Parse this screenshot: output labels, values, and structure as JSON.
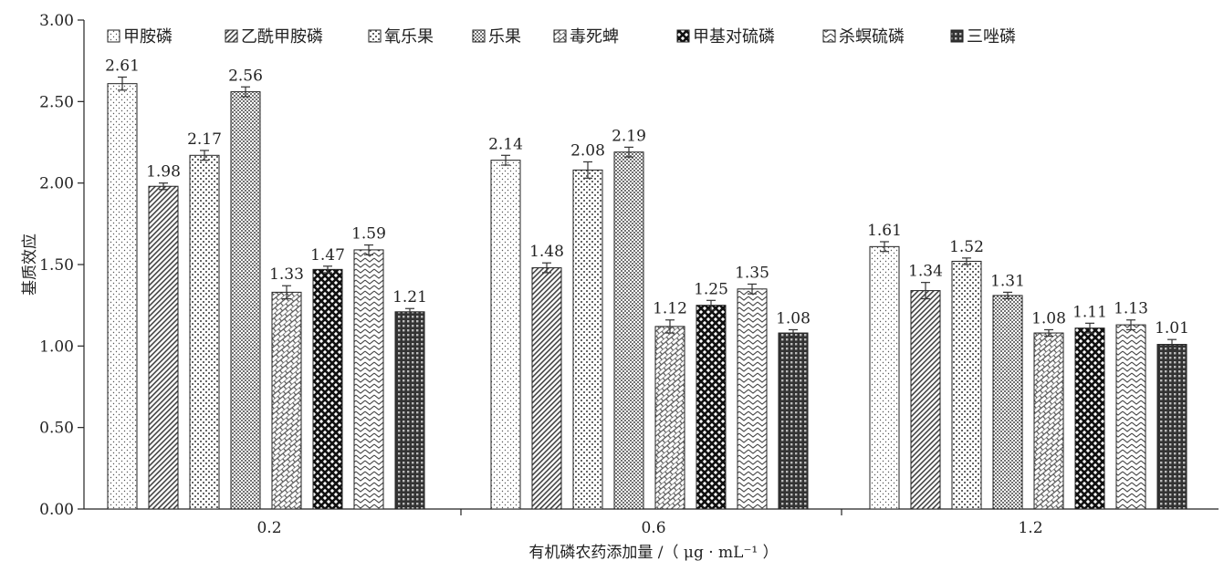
{
  "chart_data": {
    "type": "bar",
    "xlabel": "有机磷农药添加量 /（ μg · mL⁻¹ ）",
    "ylabel": "基质效应",
    "ylim": [
      0,
      3
    ],
    "yticks": [
      "0.00",
      "0.50",
      "1.00",
      "1.50",
      "2.00",
      "2.50",
      "3.00"
    ],
    "categories": [
      "0.2",
      "0.6",
      "1.2"
    ],
    "grid": false,
    "legend_position": "top",
    "series": [
      {
        "name": "甲胺磷",
        "pattern": "dots-sparse",
        "values": [
          2.61,
          2.14,
          1.61
        ],
        "errors": [
          0.04,
          0.03,
          0.03
        ],
        "labels": [
          "2.61",
          "2.14",
          "1.61"
        ]
      },
      {
        "name": "乙酰甲胺磷",
        "pattern": "diagonal-dense",
        "values": [
          1.98,
          1.48,
          1.34
        ],
        "errors": [
          0.02,
          0.03,
          0.05
        ],
        "labels": [
          "1.98",
          "1.48",
          "1.34"
        ]
      },
      {
        "name": "氧乐果",
        "pattern": "grid-dots",
        "values": [
          2.17,
          2.08,
          1.52
        ],
        "errors": [
          0.03,
          0.05,
          0.02
        ],
        "labels": [
          "2.17",
          "2.08",
          "1.52"
        ]
      },
      {
        "name": "乐果",
        "pattern": "dots-dense",
        "values": [
          2.56,
          2.19,
          1.31
        ],
        "errors": [
          0.03,
          0.03,
          0.02
        ],
        "labels": [
          "2.56",
          "2.19",
          "1.31"
        ]
      },
      {
        "name": "毒死蜱",
        "pattern": "brick",
        "values": [
          1.33,
          1.12,
          1.08
        ],
        "errors": [
          0.04,
          0.04,
          0.02
        ],
        "labels": [
          "1.33",
          "1.12",
          "1.08"
        ]
      },
      {
        "name": "甲基对硫磷",
        "pattern": "checker",
        "values": [
          1.47,
          1.25,
          1.11
        ],
        "errors": [
          0.02,
          0.03,
          0.03
        ],
        "labels": [
          "1.47",
          "1.25",
          "1.11"
        ]
      },
      {
        "name": "杀螟硫磷",
        "pattern": "zigzag",
        "values": [
          1.59,
          1.35,
          1.13
        ],
        "errors": [
          0.03,
          0.03,
          0.03
        ],
        "labels": [
          "1.59",
          "1.35",
          "1.13"
        ]
      },
      {
        "name": "三唑磷",
        "pattern": "grid-dark",
        "values": [
          1.21,
          1.08,
          1.01
        ],
        "errors": [
          0.02,
          0.02,
          0.03
        ],
        "labels": [
          "1.21",
          "1.08",
          "1.01"
        ]
      }
    ]
  }
}
